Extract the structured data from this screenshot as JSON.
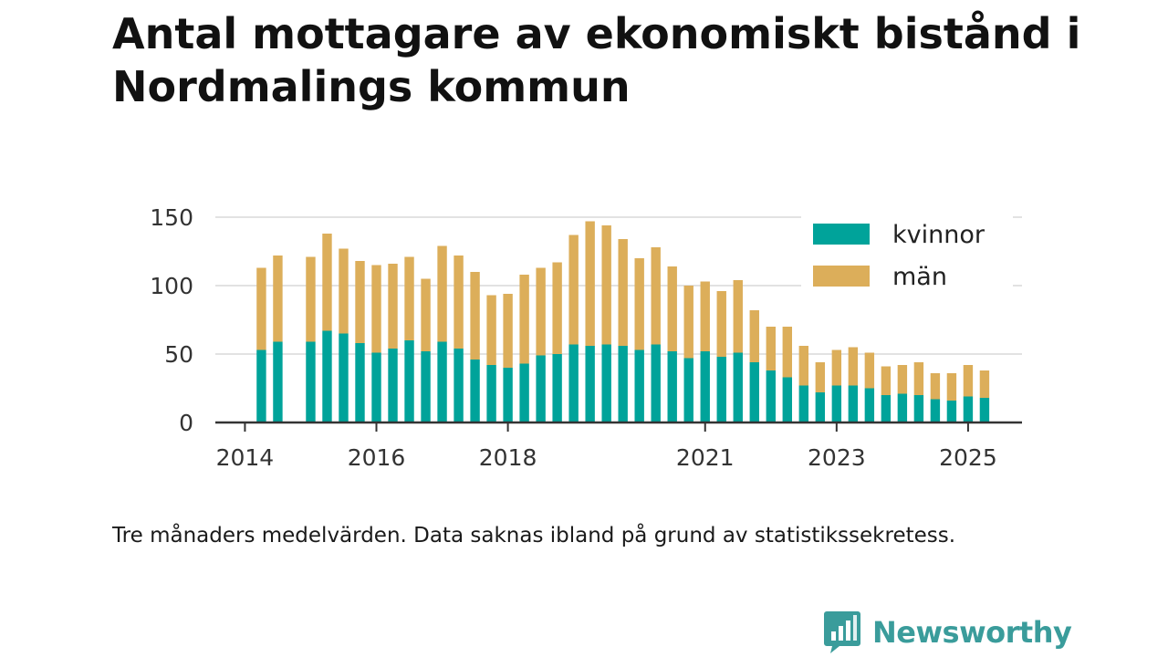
{
  "title": "Antal mottagare av ekonomiskt bistånd i Nordmalings kommun",
  "caption": "Tre månaders medelvärden. Data saknas ibland på grund av statistikssekretess.",
  "brand": {
    "name": "Newsworthy",
    "icon": "newsworthy-logo-icon",
    "color": "#3a9c9b"
  },
  "chart_data": {
    "type": "bar",
    "stacked": true,
    "title": "Antal mottagare av ekonomiskt bistånd i Nordmalings kommun",
    "ylim": [
      0,
      150
    ],
    "yticks": [
      0,
      50,
      100,
      150
    ],
    "xlim": [
      2013.55,
      2025.82
    ],
    "xticks": [
      {
        "value": 2014,
        "label": "2014"
      },
      {
        "value": 2016,
        "label": "2016"
      },
      {
        "value": 2018,
        "label": "2018"
      },
      {
        "value": 2021,
        "label": "2021"
      },
      {
        "value": 2023,
        "label": "2023"
      },
      {
        "value": 2025,
        "label": "2025"
      }
    ],
    "grid": true,
    "legend": "top-right",
    "x": [
      2014.25,
      2014.5,
      2015.0,
      2015.25,
      2015.5,
      2015.75,
      2016.0,
      2016.25,
      2016.5,
      2016.75,
      2017.0,
      2017.25,
      2017.5,
      2017.75,
      2018.0,
      2018.25,
      2018.5,
      2018.75,
      2019.0,
      2019.25,
      2019.5,
      2019.75,
      2020.0,
      2020.25,
      2020.5,
      2020.75,
      2021.0,
      2021.25,
      2021.5,
      2021.75,
      2022.0,
      2022.25,
      2022.5,
      2022.75,
      2023.0,
      2023.25,
      2023.5,
      2023.75,
      2024.0,
      2024.25,
      2024.5,
      2024.75,
      2025.0,
      2025.25
    ],
    "series": [
      {
        "name": "kvinnor",
        "color": "#00a39a",
        "values": [
          53,
          59,
          59,
          67,
          65,
          58,
          51,
          54,
          60,
          52,
          59,
          54,
          46,
          42,
          40,
          43,
          49,
          50,
          57,
          56,
          57,
          56,
          53,
          57,
          52,
          47,
          52,
          48,
          51,
          44,
          38,
          33,
          27,
          22,
          27,
          27,
          25,
          20,
          21,
          20,
          17,
          16,
          19,
          18
        ]
      },
      {
        "name": "män",
        "color": "#dcae5a",
        "values": [
          60,
          63,
          62,
          71,
          62,
          60,
          64,
          62,
          61,
          53,
          70,
          68,
          64,
          51,
          54,
          65,
          64,
          67,
          80,
          91,
          87,
          78,
          67,
          71,
          62,
          53,
          51,
          48,
          53,
          38,
          32,
          37,
          29,
          22,
          26,
          28,
          26,
          21,
          21,
          24,
          19,
          20,
          23,
          20
        ]
      }
    ]
  }
}
